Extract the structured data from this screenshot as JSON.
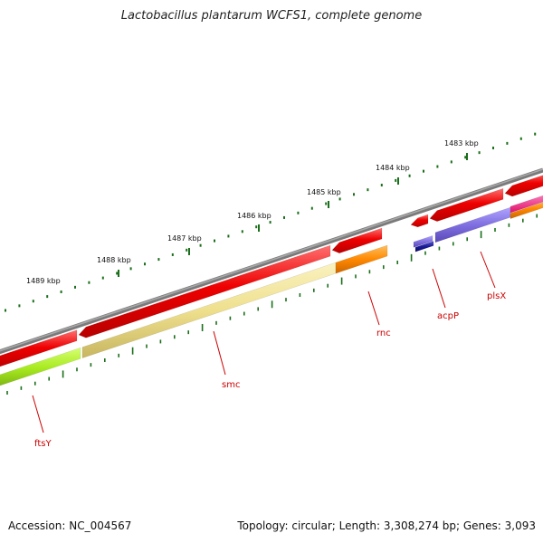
{
  "title": "Lactobacillus plantarum WCFS1, complete genome",
  "footer": {
    "accession": "Accession: NC_004567",
    "summary": "Topology: circular; Length: 3,308,274 bp; Genes: 3,093"
  },
  "scale_labels": [
    "1483 kbp",
    "1484 kbp",
    "1485 kbp",
    "1486 kbp",
    "1487 kbp",
    "1488 kbp",
    "1489 kbp"
  ],
  "gene_labels": [
    "ftsY",
    "smc",
    "rnc",
    "acpP",
    "plsX"
  ],
  "colors": {
    "backbone": "#808080",
    "gene_red": "#ee0000",
    "tick_green": "#1a6f1a",
    "label_red": "#cc0000",
    "ftsY": "#a8ea20",
    "smc": "#efe08e",
    "rnc": "#ff8800",
    "acpP": "#1a1a9a",
    "plsX": "#7f6fe0",
    "pink": "#ff2288"
  }
}
